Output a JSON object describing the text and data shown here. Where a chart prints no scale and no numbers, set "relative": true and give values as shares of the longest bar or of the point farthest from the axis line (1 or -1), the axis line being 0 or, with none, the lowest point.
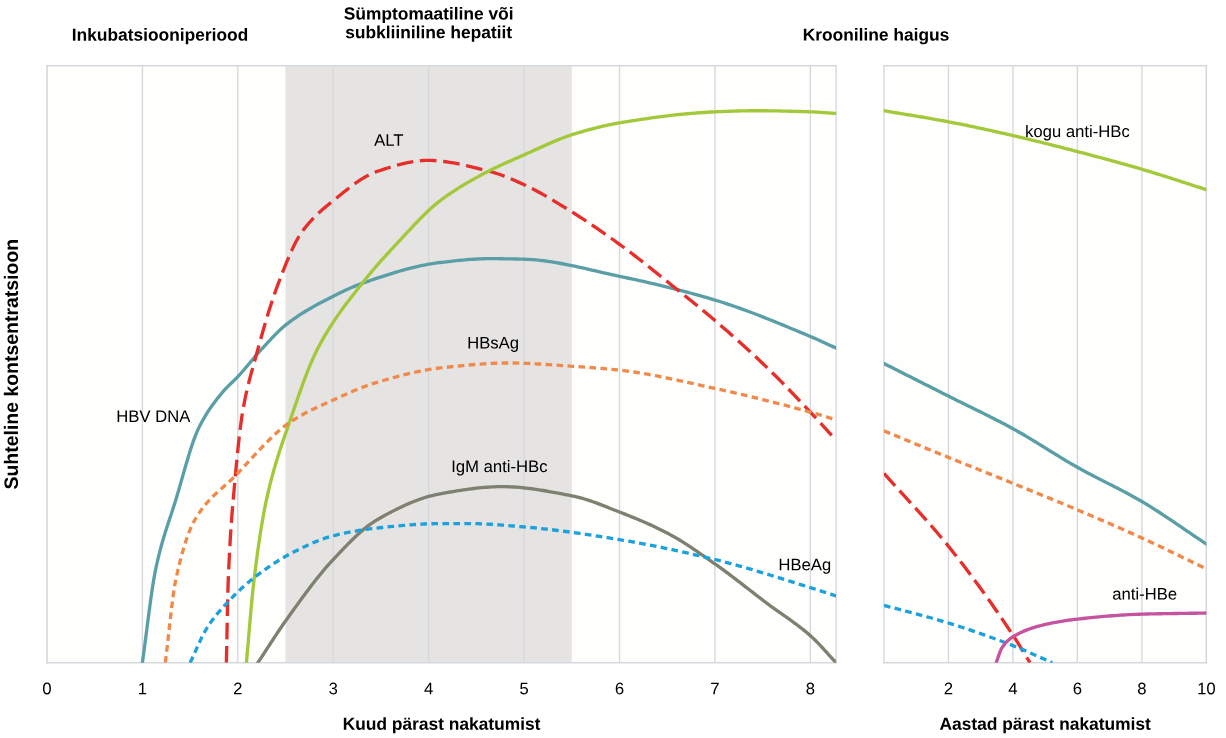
{
  "chart_data": [
    {
      "type": "line",
      "relative": true,
      "ylabel": "Suhteline kontsentratsioon",
      "xlabel": "Kuud pärast nakatumist",
      "xlim": [
        0,
        8.27
      ],
      "xticks": [
        0,
        1,
        2,
        3,
        4,
        5,
        6,
        7,
        8
      ],
      "grid": "x",
      "tick_labels": "x",
      "annotations": [
        "Inkubatsiooniperiood",
        "Krooniline haigus"
      ],
      "bands": [
        {
          "axis": "x",
          "from": 2.5,
          "to": 5.5,
          "label": "Sümptomaatiline või\nsubkliiniline hepatiit",
          "color": "#e6e4e3"
        }
      ],
      "series": [
        {
          "name": "HBV DNA",
          "color": "#5b9fa6",
          "line_style": "solid",
          "x": [
            1.0,
            1.14,
            1.35,
            1.59,
            1.84,
            2.01,
            2.26,
            2.51,
            3.0,
            3.33,
            4.12,
            4.64,
            5.0,
            6.0,
            7.0,
            8.0,
            8.27
          ],
          "values": [
            0,
            0.17,
            0.295,
            0.425,
            0.49,
            0.52,
            0.57,
            0.613,
            0.664,
            0.689,
            0.725,
            0.732,
            0.731,
            0.7,
            0.657,
            0.591,
            0.57
          ]
        },
        {
          "name": "ALT",
          "color": "#e62e2b",
          "line_style": "dashed",
          "x": [
            1.88,
            1.9,
            1.97,
            2.05,
            2.19,
            2.42,
            2.67,
            3.0,
            3.46,
            3.99,
            4.64,
            5.0,
            5.47,
            6.0,
            6.59,
            7.0,
            7.55,
            8.0,
            8.27
          ],
          "values": [
            0,
            0.15,
            0.33,
            0.454,
            0.555,
            0.685,
            0.78,
            0.837,
            0.89,
            0.91,
            0.89,
            0.866,
            0.82,
            0.758,
            0.678,
            0.62,
            0.534,
            0.454,
            0.403
          ]
        },
        {
          "color": "#a3c93a",
          "line_style": "solid",
          "x": [
            2.09,
            2.17,
            2.3,
            2.55,
            2.84,
            3.33,
            3.66,
            4.12,
            4.6,
            5.0,
            5.51,
            6.0,
            7.0,
            7.42,
            8.0,
            8.27
          ],
          "values": [
            0,
            0.15,
            0.295,
            0.44,
            0.57,
            0.693,
            0.758,
            0.837,
            0.888,
            0.92,
            0.957,
            0.978,
            0.998,
            1.0,
            0.998,
            0.995
          ]
        },
        {
          "name": "HBsAg",
          "color": "#f08a4b",
          "line_style": "dotted",
          "x": [
            1.24,
            1.35,
            1.55,
            1.97,
            2.55,
            3.0,
            3.46,
            4.12,
            4.85,
            5.51,
            6.0,
            7.0,
            8.0,
            8.27
          ],
          "values": [
            0,
            0.15,
            0.259,
            0.338,
            0.436,
            0.476,
            0.508,
            0.534,
            0.543,
            0.537,
            0.53,
            0.497,
            0.454,
            0.44
          ]
        },
        {
          "name": "IgM anti-HBc",
          "color": "#7e8070",
          "line_style": "solid",
          "x": [
            2.21,
            2.51,
            3.0,
            3.46,
            4.12,
            4.77,
            5.51,
            6.0,
            6.51,
            7.0,
            7.55,
            8.0,
            8.27
          ],
          "values": [
            0,
            0.078,
            0.187,
            0.259,
            0.306,
            0.319,
            0.302,
            0.273,
            0.234,
            0.179,
            0.107,
            0.049,
            0
          ]
        },
        {
          "name": "HBeAg",
          "color": "#1ba1dc",
          "line_style": "dotted",
          "x": [
            1.5,
            1.68,
            1.88,
            2.17,
            2.59,
            3.0,
            3.46,
            4.12,
            4.44,
            5.0,
            6.0,
            7.0,
            8.0,
            8.27
          ],
          "values": [
            0,
            0.064,
            0.107,
            0.154,
            0.201,
            0.23,
            0.244,
            0.252,
            0.252,
            0.246,
            0.223,
            0.187,
            0.136,
            0.121
          ]
        }
      ]
    },
    {
      "type": "line",
      "relative": true,
      "xlabel": "Aastad pärast nakatumist",
      "xlim": [
        0,
        10
      ],
      "xticks": [
        2,
        4,
        6,
        8,
        10
      ],
      "grid": "x",
      "tick_labels": "x",
      "series": [
        {
          "color": "#5b9fa6",
          "line_style": "solid",
          "x": [
            0,
            2,
            4,
            6,
            8,
            10
          ],
          "values": [
            0.542,
            0.483,
            0.424,
            0.354,
            0.292,
            0.215
          ]
        },
        {
          "color": "#e62e2b",
          "line_style": "dashed",
          "x": [
            0,
            2,
            4,
            4.53
          ],
          "values": [
            0.343,
            0.211,
            0.05,
            0
          ]
        },
        {
          "name": "kogu anti-HBc",
          "color": "#a3c93a",
          "line_style": "solid",
          "x": [
            0,
            2,
            4,
            6,
            8,
            10
          ],
          "values": [
            1.0,
            0.98,
            0.955,
            0.926,
            0.894,
            0.857
          ]
        },
        {
          "color": "#f08a4b",
          "line_style": "dotted",
          "x": [
            0,
            2,
            4,
            6,
            8,
            10
          ],
          "values": [
            0.42,
            0.372,
            0.325,
            0.277,
            0.226,
            0.17
          ]
        },
        {
          "color": "#1ba1dc",
          "line_style": "dotted",
          "x": [
            0,
            2,
            4,
            5.22
          ],
          "values": [
            0.104,
            0.072,
            0.031,
            0
          ]
        },
        {
          "name": "anti-HBe",
          "color": "#c6539f",
          "line_style": "solid",
          "x": [
            3.48,
            3.66,
            4.0,
            4.91,
            6.0,
            8.0,
            10
          ],
          "values": [
            0,
            0.027,
            0.047,
            0.068,
            0.079,
            0.088,
            0.09
          ]
        }
      ]
    }
  ]
}
